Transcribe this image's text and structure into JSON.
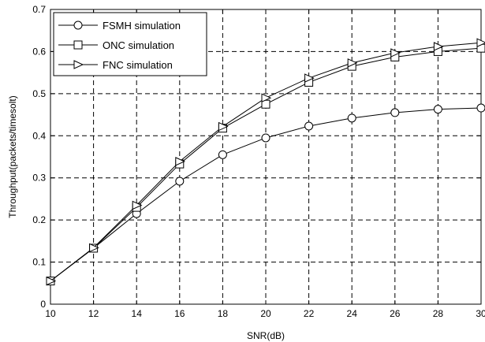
{
  "chart_data": {
    "type": "line",
    "title": "",
    "xlabel": "SNR(dB)",
    "ylabel": "Throughput(packets/timesolt)",
    "xlim": [
      10,
      30
    ],
    "ylim": [
      0,
      0.7
    ],
    "xticks": [
      10,
      12,
      14,
      16,
      18,
      20,
      22,
      24,
      26,
      28,
      30
    ],
    "yticks": [
      0,
      0.1,
      0.2,
      0.3,
      0.4,
      0.5,
      0.6,
      0.7
    ],
    "grid": true,
    "legend_position": "top-left",
    "x": [
      10,
      12,
      14,
      16,
      18,
      20,
      22,
      24,
      26,
      28,
      30
    ],
    "series": [
      {
        "name": "FSMH simulation",
        "marker": "circle",
        "values": [
          0.055,
          0.133,
          0.215,
          0.292,
          0.355,
          0.395,
          0.423,
          0.442,
          0.455,
          0.463,
          0.466
        ]
      },
      {
        "name": "ONC simulation",
        "marker": "square",
        "values": [
          0.055,
          0.133,
          0.23,
          0.333,
          0.418,
          0.475,
          0.527,
          0.565,
          0.587,
          0.6,
          0.608
        ]
      },
      {
        "name": "FNC simulation",
        "marker": "triangle-right",
        "values": [
          0.055,
          0.134,
          0.235,
          0.339,
          0.422,
          0.49,
          0.537,
          0.573,
          0.597,
          0.612,
          0.621
        ]
      }
    ]
  }
}
